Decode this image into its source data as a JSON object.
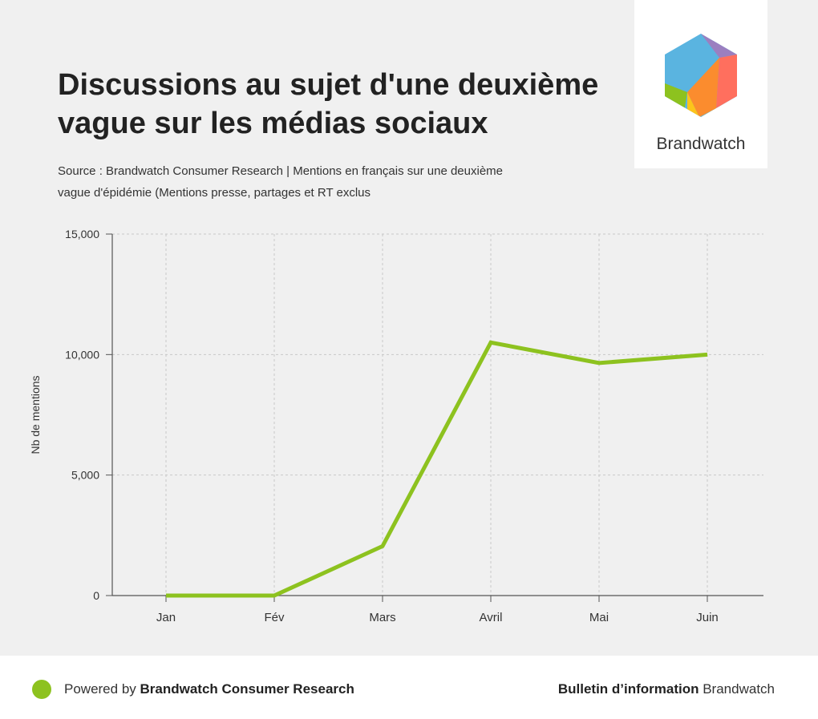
{
  "header": {
    "title": "Discussions au sujet d'une deuxième vague sur les médias sociaux",
    "subtitle": "Source : Brandwatch Consumer Research | Mentions en français sur une deuxième vague d'épidémie (Mentions presse, partages et RT exclus"
  },
  "logo": {
    "text": "Brandwatch",
    "icon": "hexagon-logo-icon"
  },
  "footer": {
    "powered_prefix": "Powered by ",
    "powered_brand": "Brandwatch Consumer Research",
    "bulletin_bold": "Bulletin d’information",
    "bulletin_rest": " Brandwatch"
  },
  "colors": {
    "line": "#8dc21f",
    "axis": "#555555",
    "grid": "#c8c8c8"
  },
  "chart_data": {
    "type": "line",
    "title": "Discussions au sujet d'une deuxième vague sur les médias sociaux",
    "xlabel": "",
    "ylabel": "Nb de mentions",
    "categories": [
      "Jan",
      "Fév",
      "Mars",
      "Avril",
      "Mai",
      "Juin"
    ],
    "series": [
      {
        "name": "Mentions",
        "values": [
          0,
          0,
          2050,
          10500,
          9650,
          10000
        ]
      }
    ],
    "ylim": [
      0,
      15000
    ],
    "yticks": [
      0,
      5000,
      10000,
      15000
    ],
    "ytick_labels": [
      "0",
      "5,000",
      "10,000",
      "15,000"
    ],
    "grid": true
  }
}
